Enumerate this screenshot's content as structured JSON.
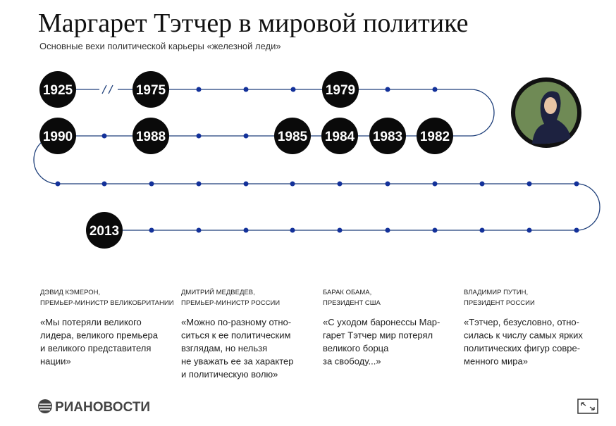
{
  "header": {
    "title": "Маргарет Тэтчер в мировой политике",
    "subtitle": "Основные вехи политической карьеры «железной леди»"
  },
  "timeline": {
    "years": [
      "1925",
      "1975",
      "1979",
      "1990",
      "1988",
      "1985",
      "1984",
      "1983",
      "1982",
      "2013"
    ]
  },
  "quotes": [
    {
      "author": [
        "ДЭВИД КЭМЕРОН,",
        "ПРЕМЬЕР-МИНИСТР ВЕЛИКОБРИТАНИИ"
      ],
      "text": [
        "«Мы потеряли великого",
        "лидера, великого премьера",
        "и великого представителя",
        "нации»"
      ]
    },
    {
      "author": [
        "ДМИТРИЙ МЕДВЕДЕВ,",
        "ПРЕМЬЕР-МИНИСТР РОССИИ"
      ],
      "text": [
        "«Можно по-разному отно-",
        "ситься к ее политическим",
        "взглядам, но нельзя",
        "не уважать ее за характер",
        "и политическую волю»"
      ]
    },
    {
      "author": [
        "БАРАК ОБАМА,",
        "ПРЕЗИДЕНТ США"
      ],
      "text": [
        "«С уходом баронессы Мар-",
        "гарет Тэтчер мир потерял",
        "великого борца",
        "за свободу...»"
      ]
    },
    {
      "author": [
        "ВЛАДИМИР ПУТИН,",
        "ПРЕЗИДЕНТ РОССИИ"
      ],
      "text": [
        "«Тэтчер, безусловно, отно-",
        "силась к числу самых ярких",
        "политических фигур совре-",
        "менного мира»"
      ]
    }
  ],
  "footer": {
    "logo": "РИАНОВОСТИ"
  }
}
